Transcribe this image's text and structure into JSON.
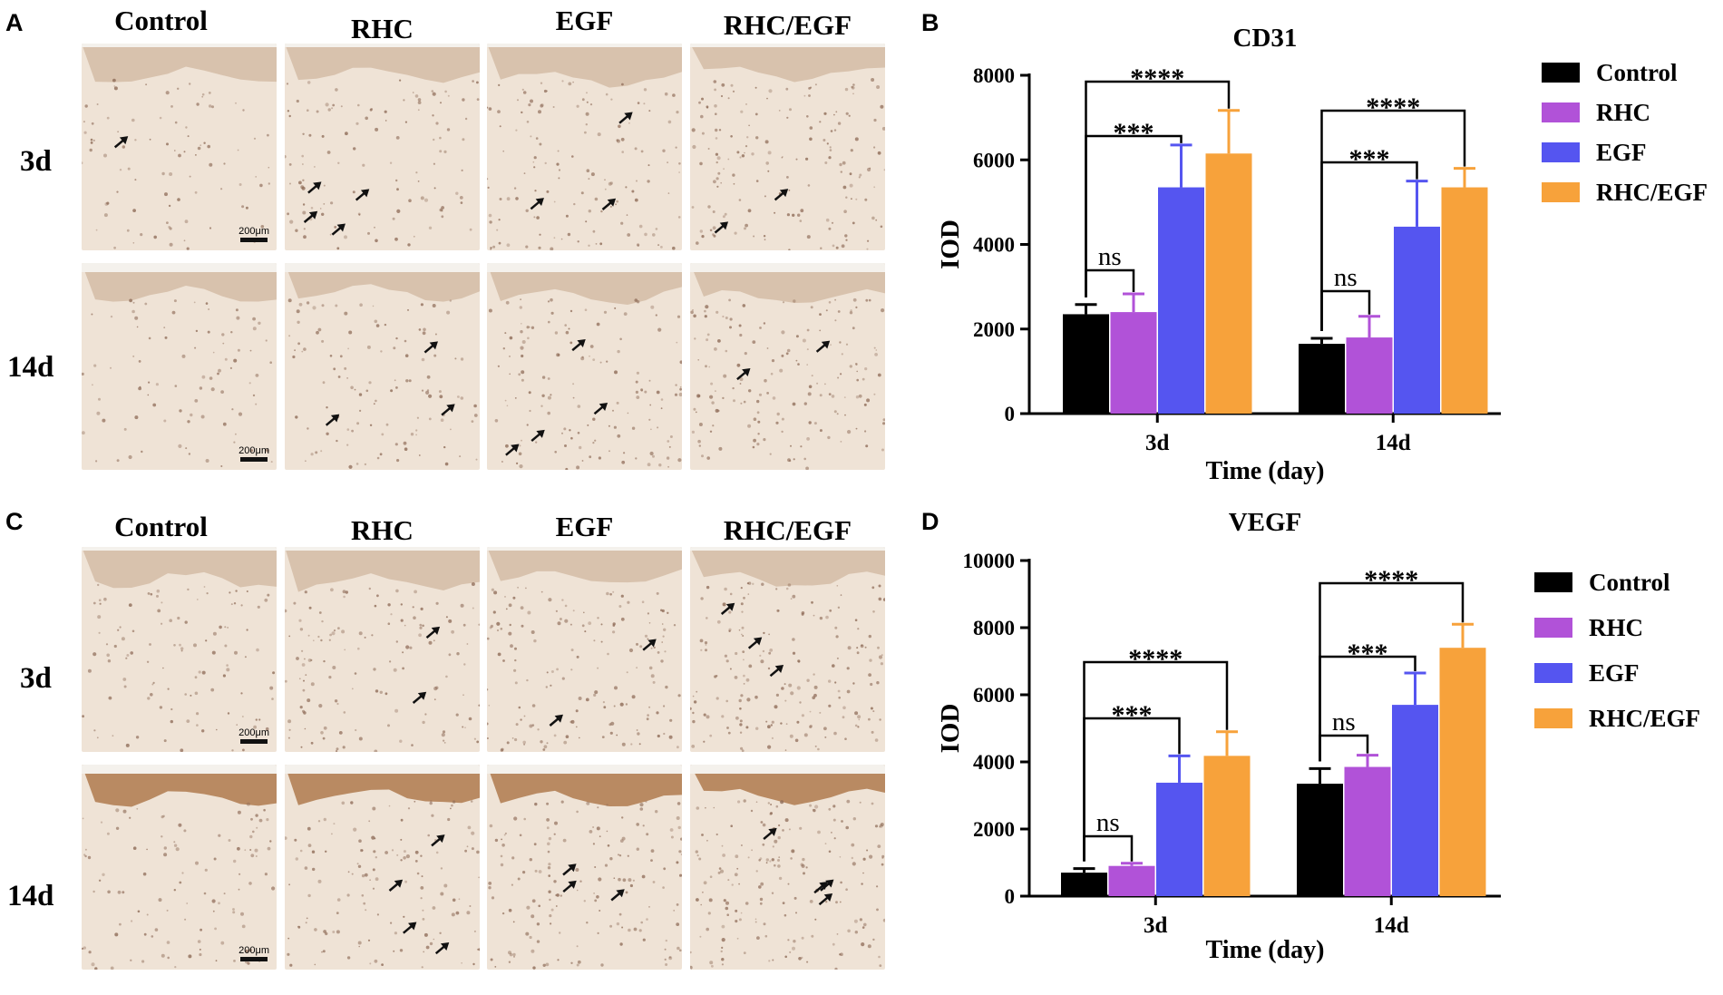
{
  "panels": {
    "a_label": "A",
    "b_label": "B",
    "c_label": "C",
    "d_label": "D"
  },
  "micrographs": {
    "columns": [
      "Control",
      "RHC",
      "EGF",
      "RHC/EGF"
    ],
    "rows": [
      "3d",
      "14d"
    ],
    "scale_bar": "200μm",
    "stain_colors": {
      "tissue_light": "#efe3d6",
      "epidermis_cd31": "#d8c2ad",
      "epidermis_vegf_14d": "#b98a62",
      "nuclei": "#8d6a56"
    }
  },
  "charts_text": {
    "legend": [
      "Control",
      "RHC",
      "EGF",
      "RHC/EGF"
    ],
    "colors": [
      "#000000",
      "#b152d8",
      "#5555f0",
      "#f7a23b"
    ]
  },
  "chart_data": [
    {
      "type": "bar",
      "title": "CD31",
      "xlabel": "Time (day)",
      "ylabel": "IOD",
      "categories": [
        "3d",
        "14d"
      ],
      "ylim": [
        0,
        8000
      ],
      "yticks": [
        0,
        2000,
        4000,
        6000,
        8000
      ],
      "series": [
        {
          "name": "Control",
          "values": [
            2350,
            1650
          ],
          "errors": [
            230,
            130
          ]
        },
        {
          "name": "RHC",
          "values": [
            2400,
            1800
          ],
          "errors": [
            430,
            500
          ]
        },
        {
          "name": "EGF",
          "values": [
            5350,
            4420
          ],
          "errors": [
            1000,
            1080
          ]
        },
        {
          "name": "RHC/EGF",
          "values": [
            6150,
            5350
          ],
          "errors": [
            1020,
            450
          ]
        }
      ],
      "significance": [
        {
          "group": "3d",
          "compare": "RHC",
          "label": "ns"
        },
        {
          "group": "3d",
          "compare": "EGF",
          "label": "***"
        },
        {
          "group": "3d",
          "compare": "RHC/EGF",
          "label": "****"
        },
        {
          "group": "14d",
          "compare": "RHC",
          "label": "ns"
        },
        {
          "group": "14d",
          "compare": "EGF",
          "label": "***"
        },
        {
          "group": "14d",
          "compare": "RHC/EGF",
          "label": "****"
        }
      ],
      "legend_placement": "right"
    },
    {
      "type": "bar",
      "title": "VEGF",
      "xlabel": "Time (day)",
      "ylabel": "IOD",
      "categories": [
        "3d",
        "14d"
      ],
      "ylim": [
        0,
        10000
      ],
      "yticks": [
        0,
        2000,
        4000,
        6000,
        8000,
        10000
      ],
      "series": [
        {
          "name": "Control",
          "values": [
            700,
            3350
          ],
          "errors": [
            120,
            450
          ]
        },
        {
          "name": "RHC",
          "values": [
            900,
            3850
          ],
          "errors": [
            80,
            350
          ]
        },
        {
          "name": "EGF",
          "values": [
            3380,
            5700
          ],
          "errors": [
            800,
            950
          ]
        },
        {
          "name": "RHC/EGF",
          "values": [
            4180,
            7400
          ],
          "errors": [
            720,
            700
          ]
        }
      ],
      "significance": [
        {
          "group": "3d",
          "compare": "RHC",
          "label": "ns"
        },
        {
          "group": "3d",
          "compare": "EGF",
          "label": "***"
        },
        {
          "group": "3d",
          "compare": "RHC/EGF",
          "label": "****"
        },
        {
          "group": "14d",
          "compare": "RHC",
          "label": "ns"
        },
        {
          "group": "14d",
          "compare": "EGF",
          "label": "***"
        },
        {
          "group": "14d",
          "compare": "RHC/EGF",
          "label": "****"
        }
      ],
      "legend_placement": "right"
    }
  ]
}
